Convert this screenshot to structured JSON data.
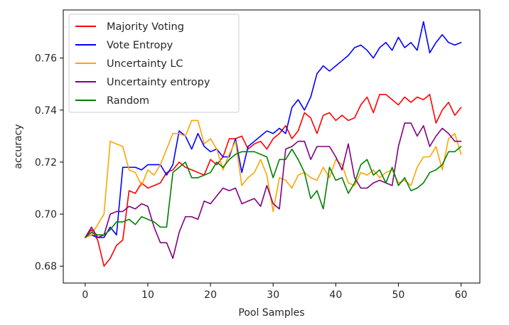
{
  "chart_data": {
    "type": "line",
    "xlabel": "Pool Samples",
    "ylabel": "accuracy",
    "xlim": [
      -3.5,
      63.0
    ],
    "ylim": [
      0.6735,
      0.7785
    ],
    "x_ticks": [
      0,
      10,
      20,
      30,
      40,
      50,
      60
    ],
    "x_tick_labels": [
      "0",
      "10",
      "20",
      "30",
      "40",
      "50",
      "60"
    ],
    "y_ticks": [
      0.68,
      0.7,
      0.72,
      0.74,
      0.76
    ],
    "y_tick_labels": [
      "0.68",
      "0.70",
      "0.72",
      "0.74",
      "0.76"
    ],
    "grid": false,
    "legend_position": "upper-left",
    "x": [
      0,
      1,
      2,
      3,
      4,
      5,
      6,
      7,
      8,
      9,
      10,
      11,
      12,
      13,
      14,
      15,
      16,
      17,
      18,
      19,
      20,
      21,
      22,
      23,
      24,
      25,
      26,
      27,
      28,
      29,
      30,
      31,
      32,
      33,
      34,
      35,
      36,
      37,
      38,
      39,
      40,
      41,
      42,
      43,
      44,
      45,
      46,
      47,
      48,
      49,
      50,
      51,
      52,
      53,
      54,
      55,
      56,
      57,
      58,
      59,
      60
    ],
    "series": [
      {
        "name": "Majority Voting",
        "color": "#ff0000",
        "values": [
          0.691,
          0.694,
          0.69,
          0.68,
          0.683,
          0.688,
          0.69,
          0.709,
          0.708,
          0.712,
          0.71,
          0.711,
          0.712,
          0.716,
          0.717,
          0.72,
          0.718,
          0.717,
          0.716,
          0.715,
          0.721,
          0.719,
          0.722,
          0.729,
          0.729,
          0.73,
          0.725,
          0.727,
          0.728,
          0.725,
          0.729,
          0.731,
          0.734,
          0.729,
          0.732,
          0.739,
          0.737,
          0.731,
          0.738,
          0.739,
          0.736,
          0.738,
          0.736,
          0.737,
          0.742,
          0.745,
          0.739,
          0.746,
          0.746,
          0.744,
          0.742,
          0.745,
          0.743,
          0.745,
          0.744,
          0.746,
          0.735,
          0.74,
          0.743,
          0.738,
          0.741
        ]
      },
      {
        "name": "Vote Entropy",
        "color": "#0000ff",
        "values": [
          0.691,
          0.692,
          0.691,
          0.691,
          0.695,
          0.692,
          0.718,
          0.718,
          0.718,
          0.717,
          0.719,
          0.719,
          0.719,
          0.715,
          0.719,
          0.732,
          0.73,
          0.725,
          0.731,
          0.726,
          0.724,
          0.725,
          0.722,
          0.722,
          0.729,
          0.716,
          0.726,
          0.728,
          0.73,
          0.732,
          0.731,
          0.733,
          0.731,
          0.741,
          0.744,
          0.74,
          0.745,
          0.754,
          0.757,
          0.755,
          0.757,
          0.759,
          0.761,
          0.764,
          0.765,
          0.763,
          0.76,
          0.764,
          0.766,
          0.763,
          0.768,
          0.764,
          0.766,
          0.763,
          0.774,
          0.762,
          0.766,
          0.769,
          0.766,
          0.765,
          0.766
        ]
      },
      {
        "name": "Uncertainty LC",
        "color": "#ffa500",
        "values": [
          0.691,
          0.692,
          0.696,
          0.7,
          0.728,
          0.727,
          0.726,
          0.717,
          0.716,
          0.711,
          0.717,
          0.715,
          0.719,
          0.725,
          0.731,
          0.731,
          0.73,
          0.736,
          0.736,
          0.727,
          0.729,
          0.725,
          0.717,
          0.723,
          0.728,
          0.711,
          0.714,
          0.716,
          0.721,
          0.715,
          0.701,
          0.714,
          0.713,
          0.71,
          0.715,
          0.716,
          0.714,
          0.713,
          0.718,
          0.714,
          0.721,
          0.719,
          0.712,
          0.711,
          0.716,
          0.715,
          0.717,
          0.714,
          0.716,
          0.717,
          0.712,
          0.713,
          0.711,
          0.718,
          0.722,
          0.722,
          0.726,
          0.717,
          0.729,
          0.731,
          0.723
        ]
      },
      {
        "name": "Uncertainty entropy",
        "color": "#800080",
        "values": [
          0.691,
          0.695,
          0.691,
          0.692,
          0.7,
          0.701,
          0.701,
          0.703,
          0.702,
          0.704,
          0.703,
          0.695,
          0.689,
          0.689,
          0.683,
          0.693,
          0.699,
          0.699,
          0.698,
          0.705,
          0.704,
          0.707,
          0.71,
          0.709,
          0.71,
          0.704,
          0.705,
          0.706,
          0.703,
          0.711,
          0.704,
          0.702,
          0.725,
          0.726,
          0.728,
          0.728,
          0.721,
          0.726,
          0.726,
          0.726,
          0.722,
          0.717,
          0.727,
          0.714,
          0.71,
          0.71,
          0.712,
          0.713,
          0.712,
          0.711,
          0.726,
          0.735,
          0.735,
          0.73,
          0.734,
          0.726,
          0.73,
          0.733,
          0.731,
          0.728,
          0.728
        ]
      },
      {
        "name": "Random",
        "color": "#008000",
        "values": [
          0.691,
          0.693,
          0.692,
          0.692,
          0.694,
          0.697,
          0.697,
          0.698,
          0.696,
          0.699,
          0.698,
          0.697,
          0.695,
          0.695,
          0.716,
          0.718,
          0.72,
          0.714,
          0.714,
          0.715,
          0.716,
          0.72,
          0.718,
          0.721,
          0.723,
          0.724,
          0.724,
          0.724,
          0.723,
          0.722,
          0.714,
          0.721,
          0.721,
          0.725,
          0.721,
          0.716,
          0.706,
          0.709,
          0.702,
          0.718,
          0.713,
          0.714,
          0.708,
          0.712,
          0.719,
          0.721,
          0.715,
          0.717,
          0.712,
          0.718,
          0.711,
          0.714,
          0.709,
          0.71,
          0.712,
          0.716,
          0.717,
          0.719,
          0.724,
          0.724,
          0.726
        ]
      }
    ]
  }
}
